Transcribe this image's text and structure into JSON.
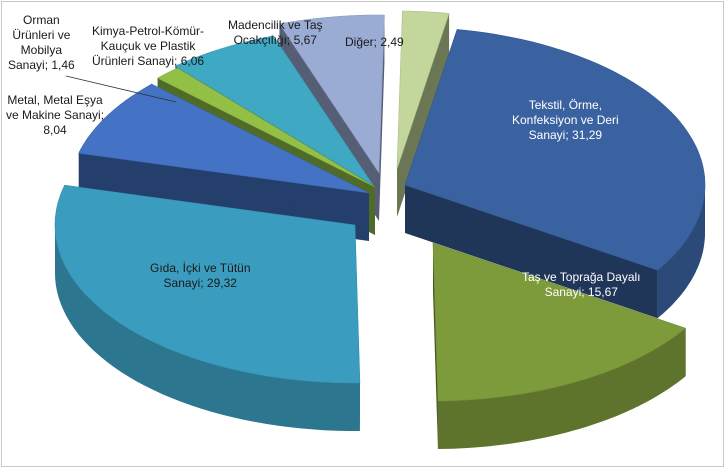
{
  "chart_data": {
    "type": "pie",
    "title": "",
    "slices": [
      {
        "name": "Tekstil, Örme, Konfeksiyon ve Deri Sanayi",
        "value": 31.29,
        "label_lines": [
          "Tekstil, Örme,",
          "Konfeksiyon ve Deri",
          "Sanayi; 31,29"
        ],
        "color": "#3b62a0"
      },
      {
        "name": "Taş ve Toprağa Dayalı Sanayi",
        "value": 15.67,
        "label_lines": [
          "Taş ve Toprağa Dayalı",
          "Sanayi; 15,67"
        ],
        "color": "#7d9b3a"
      },
      {
        "name": "Gıda, İçki ve Tütün Sanayi",
        "value": 29.32,
        "label_lines": [
          "Gıda, İçki ve Tütün",
          "Sanayi; 29,32"
        ],
        "color": "#3a9dc0"
      },
      {
        "name": "Metal, Metal Eşya ve Makine Sanayi",
        "value": 8.04,
        "label_lines": [
          "Metal, Metal Eşya",
          "ve Makine Sanayi;",
          "8,04"
        ],
        "color": "#4472c4"
      },
      {
        "name": "Orman Ürünleri ve Mobilya Sanayi",
        "value": 1.46,
        "label_lines": [
          "Orman",
          "Ürünleri ve",
          "Mobilya",
          "Sanayi; 1,46"
        ],
        "color": "#92c046"
      },
      {
        "name": "Kimya-Petrol-Kömür-Kauçuk ve Plastik Ürünleri Sanayi",
        "value": 6.06,
        "label_lines": [
          "Kimya-Petrol-Kömür-",
          "Kauçuk ve Plastik",
          "Ürünleri Sanayi; 6,06"
        ],
        "color": "#3fa9c4"
      },
      {
        "name": "Madencilik ve Taş Ocakçılığı",
        "value": 5.67,
        "label_lines": [
          "Madencilik ve Taş",
          "Ocakçılığı; 5,67"
        ],
        "color": "#9aabd4"
      },
      {
        "name": "Diğer",
        "value": 2.49,
        "label_lines": [
          "Diğer; 2,49"
        ],
        "color": "#c3d69b"
      }
    ],
    "legend": "none",
    "exploded": true,
    "style": "3d"
  }
}
